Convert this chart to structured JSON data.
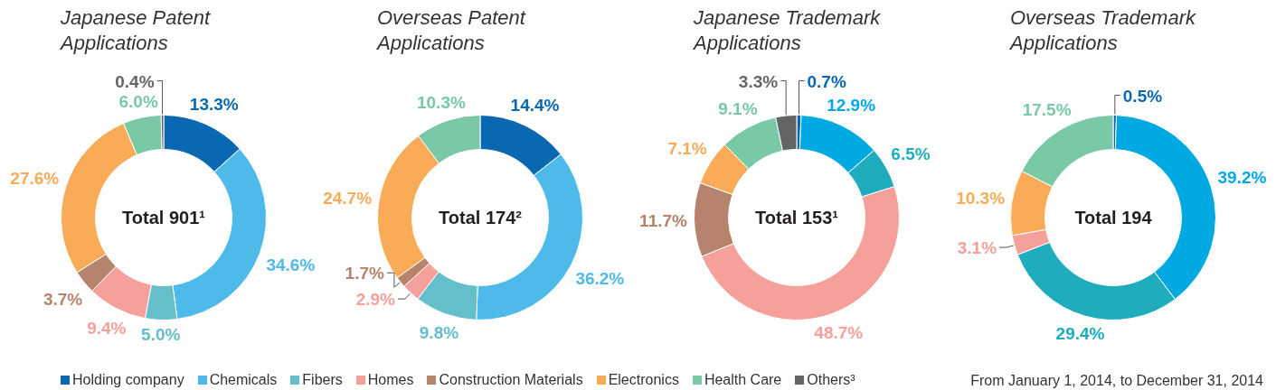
{
  "chart_data": [
    {
      "type": "donut",
      "title": "Japanese Patent Applications",
      "categories": [
        "Holding company",
        "Chemicals",
        "Fibers",
        "Homes",
        "Construction Materials",
        "Electronics",
        "Health Care",
        "Others³"
      ],
      "values": [
        13.3,
        34.6,
        5.0,
        9.4,
        3.7,
        27.6,
        6.0,
        0.4
      ],
      "colors": [
        "#0a67b2",
        "#4dbae9",
        "#64bfca",
        "#f5a09b",
        "#b6836d",
        "#f9ab57",
        "#79c9a6",
        "#636466"
      ],
      "value_labels": [
        "13.3%",
        "34.6%",
        "5.0%",
        "9.4%",
        "3.7%",
        "27.6%",
        "6.0%",
        "0.4%"
      ],
      "annotations": [
        "Total 901¹"
      ],
      "legend": "bottom"
    },
    {
      "type": "donut",
      "title": "Overseas Patent Applications",
      "categories": [
        null,
        null,
        null,
        null,
        null,
        null,
        null
      ],
      "values": [
        14.4,
        36.2,
        9.8,
        2.9,
        1.7,
        24.7,
        10.3
      ],
      "colors": [
        "#0a67b2",
        "#4dbae9",
        "#64bfca",
        "#f5a09b",
        "#b6836d",
        "#f9ab57",
        "#79c9a6"
      ],
      "value_labels": [
        "14.4%",
        "36.2%",
        "9.8%",
        "2.9%",
        "1.7%",
        "24.7%",
        "10.3%"
      ],
      "annotations": [
        "Total 174²"
      ]
    },
    {
      "type": "donut",
      "title": "Japanese Trademark Applications",
      "categories": [
        null,
        null,
        null,
        null,
        null,
        null,
        null,
        null
      ],
      "values": [
        0.7,
        12.9,
        6.5,
        48.7,
        11.7,
        7.1,
        9.1,
        3.3
      ],
      "colors": [
        "#0a67b2",
        "#00a9e1",
        "#1fadbd",
        "#f5a09b",
        "#b6836d",
        "#f9ab57",
        "#79c9a6",
        "#636466"
      ],
      "value_labels": [
        "0.7%",
        "12.9%",
        "6.5%",
        "48.7%",
        "11.7%",
        "7.1%",
        "9.1%",
        "3.3%"
      ],
      "annotations": [
        "Total 153¹"
      ]
    },
    {
      "type": "donut",
      "title": "Overseas Trademark Applications",
      "categories": [
        null,
        null,
        null,
        null,
        null,
        null
      ],
      "values": [
        0.5,
        39.2,
        29.4,
        3.1,
        10.3,
        17.5
      ],
      "colors": [
        "#0a67b2",
        "#00a9e1",
        "#1fadbd",
        "#f5a09b",
        "#f9ab57",
        "#79c9a6"
      ],
      "value_labels": [
        "0.5%",
        "39.2%",
        "29.4%",
        "3.1%",
        "10.3%",
        "17.5%"
      ],
      "annotations": [
        "Total 194",
        "From January 1, 2014, to December 31, 2014"
      ]
    }
  ]
}
